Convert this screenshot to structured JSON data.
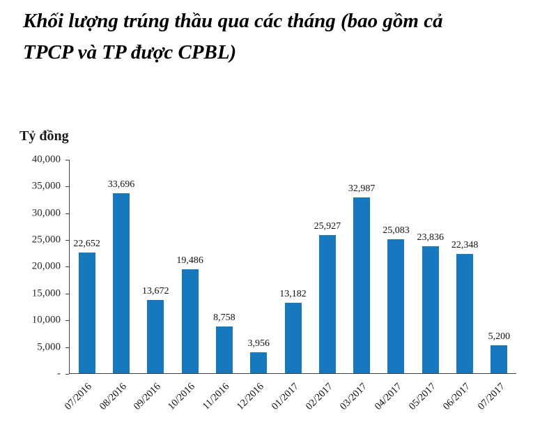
{
  "title_line1": "Khối lượng trúng thầu qua các tháng (bao gồm cả",
  "title_line2": "TPCP và TP được CPBL)",
  "chart_data": {
    "type": "bar",
    "title": "Khối lượng trúng thầu qua các tháng (bao gồm cả TPCP và TP được CPBL)",
    "ylabel": "Tỷ đồng",
    "xlabel": "",
    "ylim": [
      0,
      40000
    ],
    "grid": false,
    "legend": "none",
    "bar_color": "#1878be",
    "axis_color": "#404040",
    "categories": [
      "07/2016",
      "08/2016",
      "09/2016",
      "10/2016",
      "11/2016",
      "12/2016",
      "01/2017",
      "02/2017",
      "03/2017",
      "04/2017",
      "05/2017",
      "06/2017",
      "07/2017"
    ],
    "values": [
      22652,
      33696,
      13672,
      19486,
      8758,
      3956,
      13182,
      25927,
      32987,
      25083,
      23836,
      22348,
      5200
    ],
    "value_labels": [
      "22,652",
      "33,696",
      "13,672",
      "19,486",
      "8,758",
      "3,956",
      "13,182",
      "25,927",
      "32,987",
      "25,083",
      "23,836",
      "22,348",
      "5,200"
    ],
    "y_ticks": [
      "40,000",
      "35,000",
      "30,000",
      "25,000",
      "20,000",
      "15,000",
      "10,000",
      "5,000",
      "-"
    ]
  }
}
